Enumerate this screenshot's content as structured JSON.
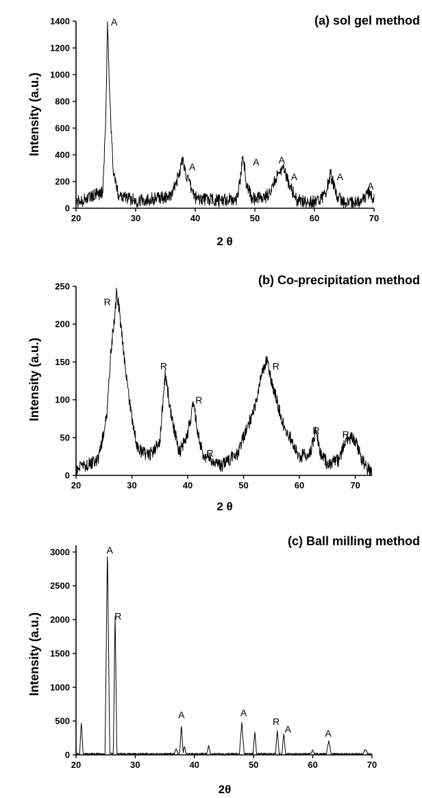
{
  "chart_data": [
    {
      "type": "line",
      "title": "(a) sol gel method",
      "xlabel": "2 θ",
      "ylabel": "Intensity (a.u.)",
      "xlim": [
        20,
        70
      ],
      "ylim": [
        0,
        1400
      ],
      "xticks": [
        20,
        30,
        40,
        50,
        60,
        70
      ],
      "yticks": [
        0,
        200,
        400,
        600,
        800,
        1000,
        1200,
        1400
      ],
      "grid": false,
      "baseline": 40,
      "series": [
        {
          "x": [
            20.0,
            24.5,
            25.0,
            25.3,
            25.6,
            26.2,
            27.0,
            30.0,
            36.0,
            37.0,
            37.9,
            38.8,
            40.0,
            44.0,
            47.0,
            47.6,
            48.0,
            48.5,
            49.5,
            52.0,
            53.4,
            54.0,
            55.0,
            55.6,
            57.0,
            60.0,
            61.8,
            62.7,
            63.6,
            65.0,
            67.0,
            68.5,
            69.2,
            70.0
          ],
          "y": [
            40,
            120,
            700,
            1400,
            900,
            300,
            110,
            55,
            90,
            220,
            360,
            200,
            80,
            55,
            70,
            230,
            430,
            200,
            70,
            90,
            200,
            300,
            280,
            200,
            60,
            50,
            100,
            260,
            100,
            45,
            40,
            80,
            110,
            70
          ]
        }
      ],
      "annotations": [
        {
          "x": 26.4,
          "y": 1370,
          "text": "A"
        },
        {
          "x": 39.5,
          "y": 285,
          "text": "A"
        },
        {
          "x": 50.2,
          "y": 320,
          "text": "A"
        },
        {
          "x": 54.5,
          "y": 335,
          "text": "A"
        },
        {
          "x": 56.6,
          "y": 210,
          "text": "A"
        },
        {
          "x": 64.3,
          "y": 210,
          "text": "A"
        },
        {
          "x": 69.4,
          "y": 140,
          "text": "A"
        }
      ]
    },
    {
      "type": "line",
      "title": "(b) Co-precipitation method",
      "xlabel": "2 θ",
      "ylabel": "Intensity (a.u.)",
      "xlim": [
        20,
        73
      ],
      "ylim": [
        0,
        250
      ],
      "xticks": [
        20,
        30,
        40,
        50,
        60,
        70
      ],
      "yticks": [
        0,
        50,
        100,
        150,
        200,
        250
      ],
      "grid": false,
      "baseline": 8,
      "series": [
        {
          "x": [
            20.0,
            24.0,
            25.5,
            26.3,
            27.0,
            27.3,
            28.0,
            29.5,
            31.0,
            33.0,
            35.0,
            36.0,
            37.0,
            38.5,
            40.0,
            41.0,
            42.0,
            43.0,
            43.8,
            44.6,
            46.0,
            49.0,
            52.0,
            53.5,
            54.2,
            55.0,
            57.0,
            60.0,
            62.0,
            62.9,
            63.8,
            65.0,
            67.0,
            68.3,
            69.0,
            70.0,
            71.0,
            72.0,
            73.0
          ],
          "y": [
            8,
            20,
            80,
            170,
            215,
            245,
            200,
            100,
            35,
            25,
            45,
            135,
            80,
            30,
            55,
            95,
            50,
            20,
            25,
            15,
            12,
            30,
            90,
            140,
            153,
            125,
            70,
            25,
            30,
            60,
            30,
            15,
            20,
            45,
            50,
            47,
            25,
            10,
            5
          ]
        }
      ],
      "annotations": [
        {
          "x": 25.6,
          "y": 225,
          "text": "R"
        },
        {
          "x": 35.7,
          "y": 140,
          "text": "R"
        },
        {
          "x": 42.0,
          "y": 95,
          "text": "R"
        },
        {
          "x": 44.0,
          "y": 25,
          "text": "R"
        },
        {
          "x": 55.8,
          "y": 140,
          "text": "R"
        },
        {
          "x": 63.0,
          "y": 55,
          "text": "R"
        },
        {
          "x": 68.3,
          "y": 50,
          "text": "R"
        }
      ]
    },
    {
      "type": "line",
      "title": "(c) Ball milling method",
      "xlabel": "2θ",
      "ylabel": "Intensity (a.u.)",
      "xlim": [
        20,
        70
      ],
      "ylim": [
        0,
        3100
      ],
      "xticks": [
        20,
        30,
        40,
        50,
        60,
        70
      ],
      "yticks": [
        0,
        500,
        1000,
        1500,
        2000,
        2500,
        3000
      ],
      "grid": false,
      "baseline": 15,
      "series": [
        {
          "x": [
            20.0,
            20.6,
            20.9,
            21.2,
            24.9,
            25.3,
            25.7,
            26.3,
            26.6,
            26.9,
            27.2,
            36.6,
            36.9,
            37.2,
            37.5,
            37.8,
            38.1,
            38.3,
            38.6,
            38.9,
            42.1,
            42.4,
            42.7,
            47.6,
            48.0,
            48.4,
            49.9,
            50.2,
            50.5,
            53.7,
            54.0,
            54.3,
            54.8,
            55.1,
            55.4,
            59.7,
            60.0,
            60.3,
            62.3,
            62.7,
            63.1,
            68.5,
            68.9,
            69.3,
            70.0
          ],
          "y": [
            15,
            15,
            490,
            15,
            15,
            3100,
            15,
            15,
            2130,
            15,
            15,
            15,
            100,
            15,
            15,
            450,
            15,
            140,
            15,
            15,
            15,
            150,
            15,
            15,
            480,
            15,
            15,
            350,
            15,
            15,
            370,
            15,
            15,
            330,
            15,
            15,
            80,
            15,
            15,
            210,
            15,
            15,
            85,
            15,
            15
          ]
        }
      ],
      "annotations": [
        {
          "x": 25.7,
          "y": 2980,
          "text": "A"
        },
        {
          "x": 27.1,
          "y": 2000,
          "text": "R"
        },
        {
          "x": 37.8,
          "y": 540,
          "text": "A"
        },
        {
          "x": 48.3,
          "y": 570,
          "text": "A"
        },
        {
          "x": 53.8,
          "y": 440,
          "text": "R"
        },
        {
          "x": 55.8,
          "y": 330,
          "text": "A"
        },
        {
          "x": 62.6,
          "y": 270,
          "text": "A"
        }
      ]
    }
  ]
}
